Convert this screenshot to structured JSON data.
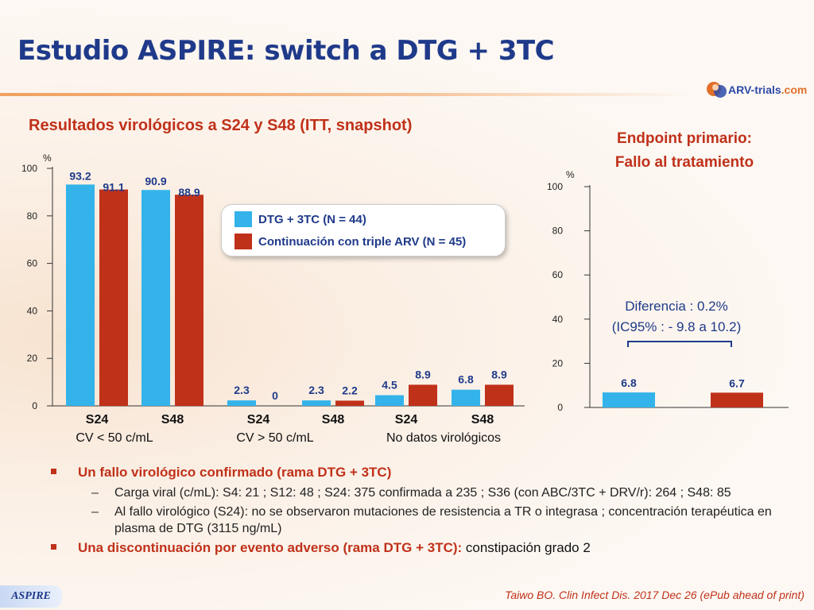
{
  "slide": {
    "title": "Estudio ASPIRE: switch a DTG + 3TC",
    "logo": {
      "main": "ARV-trials",
      "suffix": ".com"
    },
    "chart_title": "Resultados virológicos a S24 y S48 (ITT, snapshot)",
    "endpoint_title_1": "Endpoint primario:",
    "endpoint_title_2": "Fallo al tratamiento",
    "difference_1": "Diferencia : 0.2%",
    "difference_2": "(IC95% : - 9.8 a 10.2)",
    "notes": {
      "b1": "Un fallo virológico confirmado (rama DTG + 3TC)",
      "s1": "Carga viral (c/mL): S4: 21 ; S12: 48 ; S24: 375 confirmada a 235 ; S36 (con ABC/3TC + DRV/r): 264 ; S48: 85",
      "s2": "Al fallo virológico (S24): no se observaron mutaciones de resistencia a TR o integrasa ; concentración terapéutica en plasma de DTG (3115 ng/mL)",
      "b2_bold": "Una discontinuación por evento adverso (rama DTG + 3TC):",
      "b2_tail": " constipación grado 2"
    },
    "tag": "ASPIRE",
    "reference": "Taiwo BO. Clin Infect Dis. 2017 Dec 26 (ePub ahead of print)"
  },
  "colors": {
    "dtg": "#33b3ea",
    "triple": "#c0311a",
    "title": "#1f3a8a",
    "accent": "#c0311a"
  },
  "icons": {
    "logo": "arv-trials-logo-icon"
  },
  "chart_data": [
    {
      "type": "bar",
      "title": "Resultados virológicos a S24 y S48 (ITT, snapshot)",
      "ylabel": "%",
      "ylim": [
        0,
        100
      ],
      "yticks": [
        0,
        20,
        40,
        60,
        80,
        100
      ],
      "legend": "top-right",
      "categories": [
        "S24",
        "S48",
        "S24",
        "S48",
        "S24",
        "S48"
      ],
      "groups": [
        "CV < 50 c/mL",
        "CV > 50 c/mL",
        "No datos virológicos"
      ],
      "series": [
        {
          "name": "DTG + 3TC (N = 44)",
          "values": [
            93.2,
            90.9,
            2.3,
            2.3,
            4.5,
            6.8
          ]
        },
        {
          "name": "Continuación con triple ARV (N = 45)",
          "values": [
            91.1,
            88.9,
            0,
            2.2,
            8.9,
            8.9
          ]
        }
      ]
    },
    {
      "type": "bar",
      "title": "Endpoint primario: Fallo al tratamiento",
      "ylabel": "%",
      "ylim": [
        0,
        100
      ],
      "yticks": [
        0,
        20,
        40,
        60,
        80,
        100
      ],
      "categories": [
        "DTG + 3TC",
        "Continuación con triple ARV"
      ],
      "values": [
        6.8,
        6.7
      ]
    }
  ]
}
